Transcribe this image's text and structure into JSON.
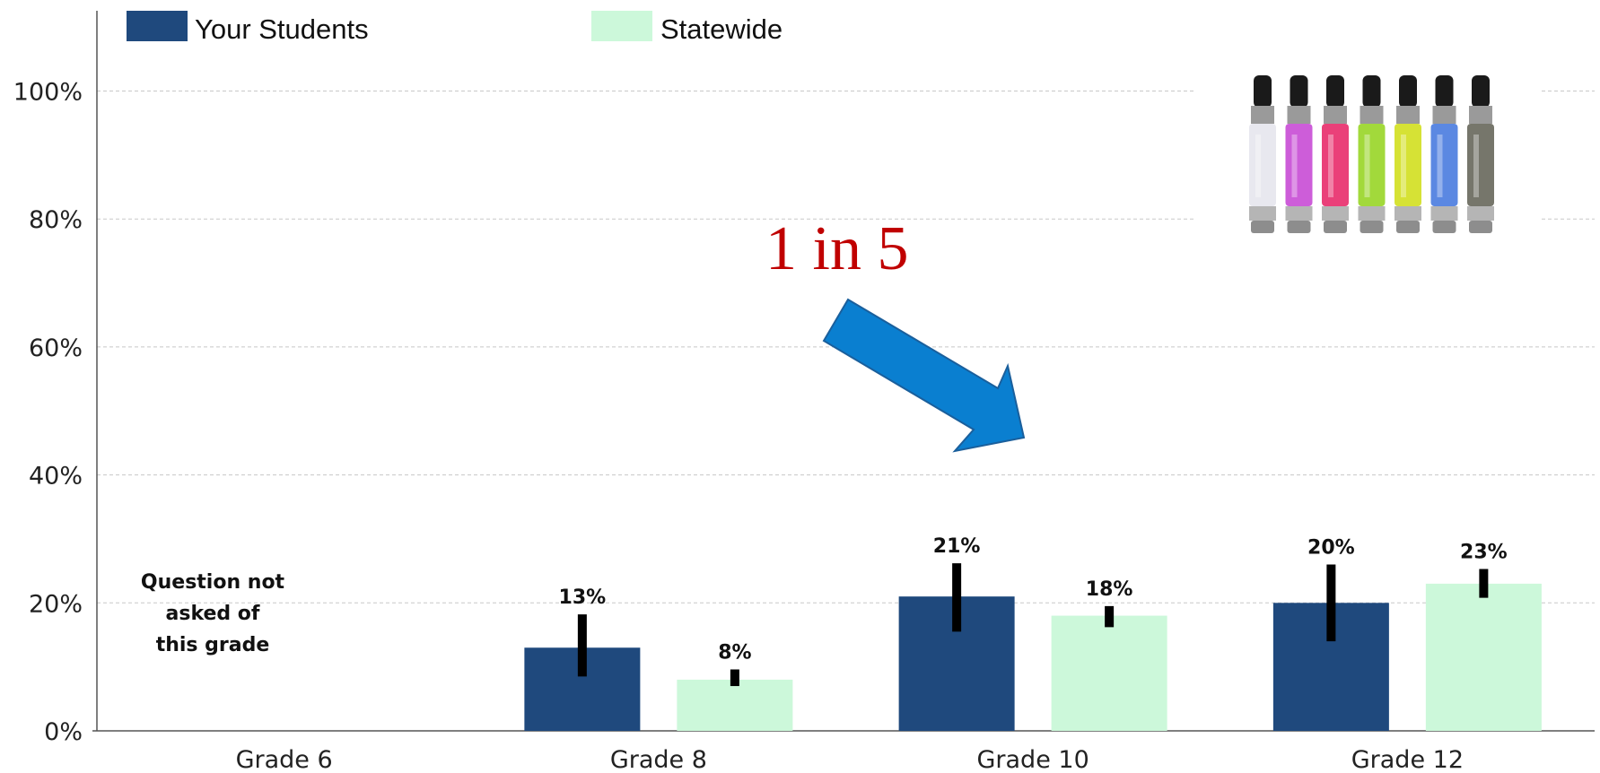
{
  "chart_data": {
    "type": "bar",
    "categories": [
      "Grade 6",
      "Grade 8",
      "Grade 10",
      "Grade 12"
    ],
    "series": [
      {
        "name": "Your Students",
        "color": "#1f497d",
        "values": [
          null,
          13,
          21,
          20
        ],
        "labels": [
          "",
          "13%",
          "21%",
          "20%"
        ],
        "error_low": [
          null,
          8.5,
          15.5,
          14
        ],
        "error_high": [
          null,
          18.2,
          26.2,
          26
        ]
      },
      {
        "name": "Statewide",
        "color": "#ccf8da",
        "values": [
          null,
          8,
          18,
          23
        ],
        "labels": [
          "",
          "8%",
          "18%",
          "23%"
        ],
        "error_low": [
          null,
          7,
          16.2,
          20.8
        ],
        "error_high": [
          null,
          9.6,
          19.5,
          25.3
        ]
      }
    ],
    "ylim": [
      0,
      110
    ],
    "yticks": [
      "0%",
      "20%",
      "40%",
      "60%",
      "80%",
      "100%"
    ],
    "ytick_values": [
      0,
      20,
      40,
      60,
      80,
      100
    ],
    "grid": true,
    "legend_position": "top-left",
    "missing_note": [
      "Question not",
      "asked of",
      "this grade"
    ],
    "annotation": {
      "text": "1 in 5",
      "color": "#c00000"
    },
    "arrow_color": "#0a7fd0",
    "image_icon": "e-cigarette-cartridges-icon"
  }
}
